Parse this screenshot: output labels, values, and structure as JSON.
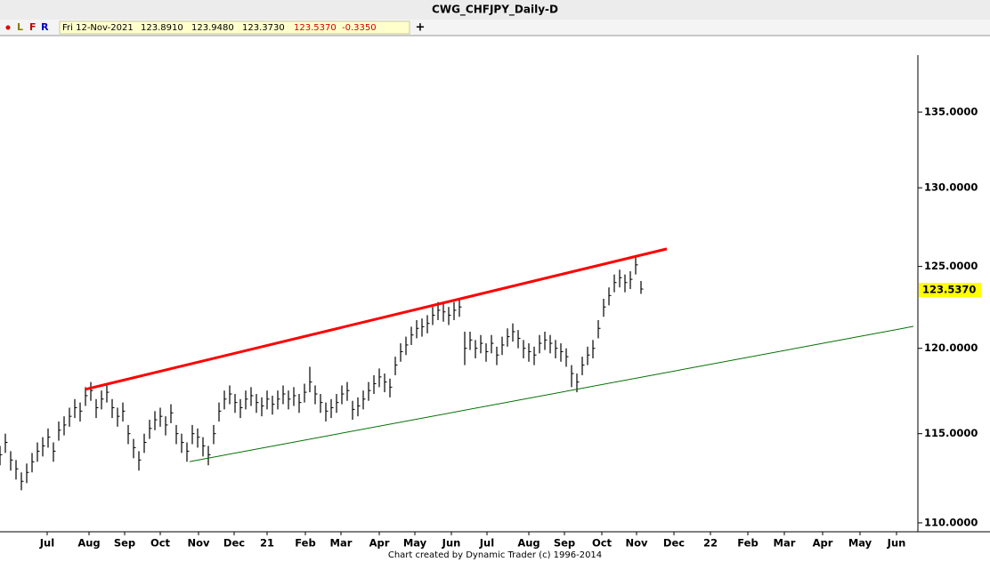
{
  "header": {
    "toolbar": [
      "L",
      "F",
      "R"
    ],
    "info": [
      "Fri 12-Nov-2021",
      "123.8910",
      "123.9480",
      "123.3730",
      "123.5370",
      "-0.3350"
    ],
    "add": "+"
  },
  "footer": "Chart created by Dynamic Trader  (c) 1996-2014",
  "chart_data": {
    "type": "hlc",
    "title": "CWG_CHFJPY_Daily-D",
    "log_scale": true,
    "color": "#000000",
    "xlim": [
      0,
      515
    ],
    "ylim": [
      109.51,
      138.89
    ],
    "xticks": [
      {
        "value": 26.5,
        "label": "Jul"
      },
      {
        "value": 50,
        "label": "Aug"
      },
      {
        "value": 70,
        "label": "Sep"
      },
      {
        "value": 90,
        "label": "Oct"
      },
      {
        "value": 111.5,
        "label": "Nov"
      },
      {
        "value": 131.5,
        "label": "Dec"
      },
      {
        "value": 150,
        "label": "21"
      },
      {
        "value": 171.5,
        "label": "Feb"
      },
      {
        "value": 191.5,
        "label": "Mar"
      },
      {
        "value": 213,
        "label": "Apr"
      },
      {
        "value": 233,
        "label": "May"
      },
      {
        "value": 253.5,
        "label": "Jun"
      },
      {
        "value": 273.5,
        "label": "Jul"
      },
      {
        "value": 297,
        "label": "Aug"
      },
      {
        "value": 317,
        "label": "Sep"
      },
      {
        "value": 338,
        "label": "Oct"
      },
      {
        "value": 357.5,
        "label": "Nov"
      },
      {
        "value": 378.5,
        "label": "Dec"
      },
      {
        "value": 399,
        "label": "22"
      },
      {
        "value": 420,
        "label": "Feb"
      },
      {
        "value": 440.5,
        "label": "Mar"
      },
      {
        "value": 462,
        "label": "Apr"
      },
      {
        "value": 483,
        "label": "May"
      },
      {
        "value": 503.5,
        "label": "Jun"
      }
    ],
    "yticks": [
      {
        "value": 110,
        "label": "110.0000"
      },
      {
        "value": 115,
        "label": "115.0000"
      },
      {
        "value": 120,
        "label": "120.0000"
      },
      {
        "value": 125,
        "label": "125.0000"
      },
      {
        "value": 130,
        "label": "130.0000"
      },
      {
        "value": 135,
        "label": "135.0000"
      }
    ],
    "last_price": {
      "value": 123.537,
      "label": "123.5370",
      "color": "#ffff00"
    },
    "x": [
      0,
      3,
      6,
      9,
      12,
      15,
      18,
      21,
      24,
      27,
      30,
      33,
      36,
      39,
      42,
      45,
      48,
      51,
      54,
      57,
      60,
      63,
      66,
      69,
      72,
      75,
      78,
      81,
      84,
      87,
      90,
      93,
      96,
      99,
      102,
      105,
      108,
      111,
      114,
      117,
      120,
      123,
      126,
      129,
      132,
      135,
      138,
      141,
      144,
      147,
      150,
      153,
      156,
      159,
      162,
      165,
      168,
      171,
      174,
      177,
      180,
      183,
      186,
      189,
      192,
      195,
      198,
      201,
      204,
      207,
      210,
      213,
      216,
      219,
      222,
      225,
      228,
      231,
      234,
      237,
      240,
      243,
      246,
      249,
      252,
      255,
      258,
      261,
      264,
      267,
      270,
      273,
      276,
      279,
      282,
      285,
      288,
      291,
      294,
      297,
      300,
      303,
      306,
      309,
      312,
      315,
      318,
      321,
      324,
      327,
      330,
      333,
      336,
      339,
      342,
      345,
      348,
      351,
      354,
      357,
      360
    ],
    "high": [
      114.3,
      115.0,
      114.0,
      113.5,
      112.8,
      113.3,
      113.9,
      114.5,
      114.8,
      115.3,
      114.5,
      115.7,
      116.0,
      116.5,
      117.0,
      116.8,
      117.7,
      118.0,
      117.0,
      117.5,
      117.9,
      117.0,
      116.5,
      116.8,
      115.5,
      114.7,
      114.0,
      115.0,
      115.8,
      116.3,
      116.5,
      116.0,
      116.7,
      115.5,
      115.0,
      114.5,
      115.5,
      115.3,
      114.8,
      114.3,
      115.5,
      116.8,
      117.5,
      117.8,
      117.3,
      117.0,
      117.5,
      117.7,
      117.3,
      117.1,
      117.5,
      117.2,
      117.5,
      117.8,
      117.5,
      117.7,
      117.3,
      117.9,
      118.9,
      117.8,
      117.3,
      116.8,
      117.0,
      117.3,
      117.8,
      118.0,
      116.9,
      117.1,
      117.5,
      118.0,
      118.4,
      118.8,
      118.5,
      118.2,
      119.5,
      120.3,
      120.7,
      121.3,
      121.7,
      121.8,
      122.0,
      122.5,
      122.8,
      122.7,
      122.5,
      122.8,
      123.0,
      121.0,
      121.0,
      120.5,
      120.8,
      120.3,
      120.8,
      120.1,
      120.7,
      121.2,
      121.5,
      121.1,
      120.5,
      120.3,
      120.1,
      120.8,
      121.0,
      120.8,
      120.5,
      120.3,
      120.0,
      119.0,
      118.5,
      119.5,
      120.1,
      120.5,
      121.7,
      123.0,
      123.7,
      124.5,
      124.8,
      124.5,
      124.7,
      125.6,
      124.1
    ],
    "low": [
      113.2,
      113.9,
      112.9,
      112.4,
      111.8,
      112.2,
      112.8,
      113.4,
      113.7,
      114.2,
      113.4,
      114.6,
      114.9,
      115.4,
      115.9,
      115.7,
      116.6,
      116.9,
      115.9,
      116.4,
      116.8,
      115.9,
      115.4,
      115.7,
      114.4,
      113.6,
      112.9,
      113.9,
      114.7,
      115.2,
      115.4,
      114.9,
      115.6,
      114.4,
      113.9,
      113.4,
      114.4,
      114.2,
      113.7,
      113.2,
      114.4,
      115.7,
      116.4,
      116.7,
      116.2,
      115.9,
      116.4,
      116.6,
      116.2,
      116.0,
      116.4,
      116.1,
      116.4,
      116.7,
      116.4,
      116.6,
      116.2,
      116.8,
      117.4,
      116.7,
      116.2,
      115.7,
      115.9,
      116.2,
      116.7,
      116.9,
      115.8,
      116.0,
      116.4,
      116.9,
      117.3,
      117.7,
      117.4,
      117.1,
      118.4,
      119.2,
      119.6,
      120.2,
      120.6,
      120.7,
      120.9,
      121.4,
      121.7,
      121.6,
      121.4,
      121.7,
      121.9,
      119.0,
      119.9,
      119.4,
      119.7,
      119.2,
      119.7,
      119.0,
      119.6,
      120.1,
      120.4,
      120.0,
      119.4,
      119.2,
      119.0,
      119.7,
      119.9,
      119.7,
      119.4,
      119.2,
      118.9,
      117.7,
      117.4,
      118.4,
      119.0,
      119.4,
      120.6,
      121.9,
      122.6,
      123.4,
      123.7,
      123.4,
      123.6,
      124.5,
      123.3
    ],
    "close": [
      113.8,
      114.5,
      113.5,
      113.0,
      112.3,
      112.8,
      113.4,
      114.0,
      114.3,
      114.8,
      114.0,
      115.2,
      115.5,
      116.0,
      116.5,
      116.3,
      117.2,
      117.5,
      116.5,
      117.0,
      117.4,
      116.5,
      116.0,
      116.3,
      115.0,
      114.2,
      113.5,
      114.5,
      115.3,
      115.8,
      116.0,
      115.5,
      116.2,
      115.0,
      114.5,
      114.0,
      115.0,
      114.8,
      114.3,
      113.8,
      115.0,
      116.3,
      117.0,
      117.3,
      116.8,
      116.5,
      117.0,
      117.2,
      116.8,
      116.6,
      117.0,
      116.7,
      117.0,
      117.3,
      117.0,
      117.2,
      116.8,
      117.4,
      118.0,
      117.3,
      116.8,
      116.3,
      116.5,
      116.8,
      117.3,
      117.5,
      116.4,
      116.6,
      117.0,
      117.5,
      117.9,
      118.3,
      118.0,
      117.7,
      119.0,
      119.8,
      120.2,
      120.8,
      121.2,
      121.3,
      121.5,
      122.0,
      122.3,
      122.2,
      122.0,
      122.3,
      122.5,
      120.0,
      120.5,
      120.0,
      120.3,
      119.8,
      120.3,
      119.6,
      120.2,
      120.7,
      121.0,
      120.6,
      120.0,
      119.8,
      119.6,
      120.3,
      120.5,
      120.3,
      120.0,
      119.8,
      119.5,
      118.5,
      118.0,
      119.0,
      119.6,
      120.0,
      121.2,
      122.5,
      123.2,
      124.0,
      124.3,
      124.0,
      124.2,
      125.1,
      123.6
    ],
    "lines": [
      {
        "color": "#ff0000",
        "x": [
          48,
          374.5
        ],
        "y": [
          117.57,
          126.1
        ]
      },
      {
        "color": "#007000",
        "x": [
          106.5,
          513
        ],
        "y": [
          113.41,
          121.32
        ]
      }
    ]
  }
}
